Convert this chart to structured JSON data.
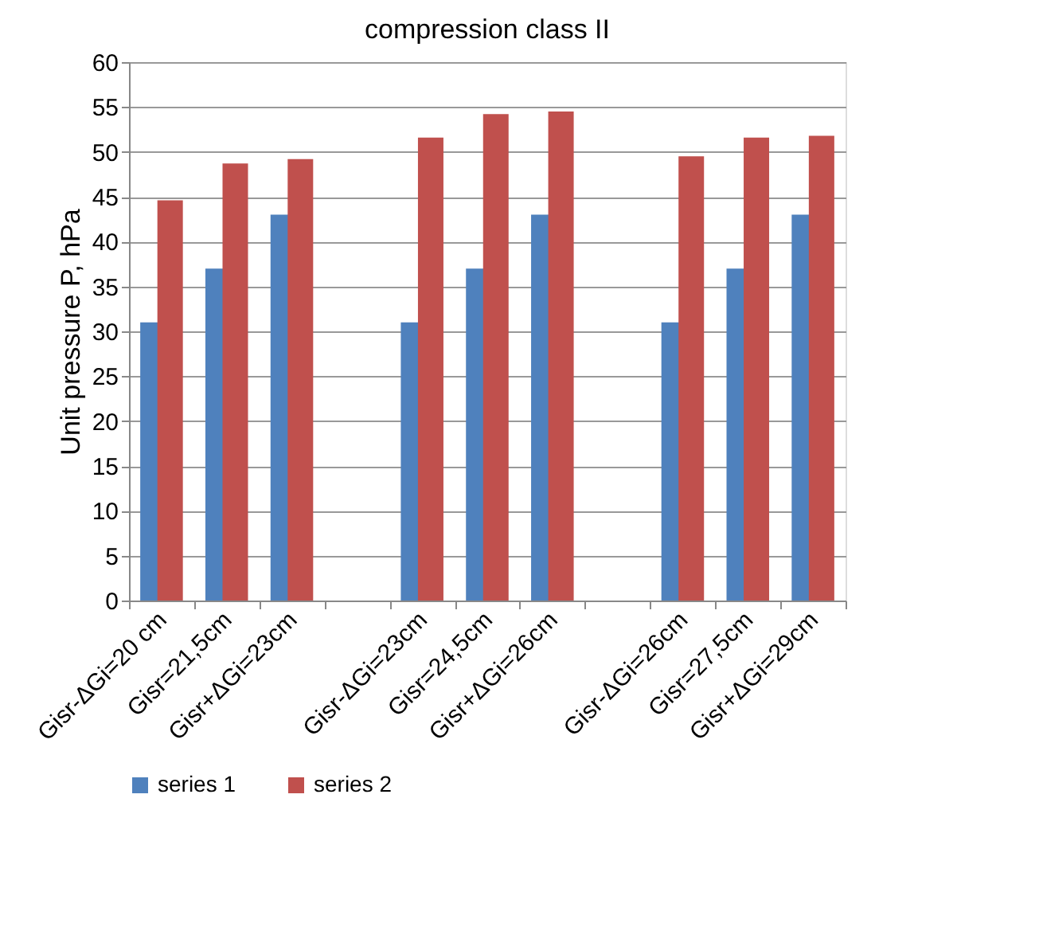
{
  "chart_data": {
    "type": "bar",
    "title": "compression class II",
    "ylabel": "Unit pressure P, hPa",
    "categories": [
      "Gisr-ΔGi=20 cm",
      "Gisr=21,5cm",
      "Gisr+ΔGi=23cm",
      null,
      "Gisr-ΔGi=23cm",
      "Gisr=24,5cm",
      "Gisr+ΔGi=26cm",
      null,
      "Gisr-ΔGi=26cm",
      "Gisr=27,5cm",
      "Gisr+ΔGi=29cm"
    ],
    "series": [
      {
        "name": "series 1",
        "color": "#4f81bd",
        "values": [
          31,
          37,
          43,
          null,
          31,
          37,
          43,
          null,
          31,
          37,
          43
        ]
      },
      {
        "name": "series 2",
        "color": "#c0504d",
        "values": [
          44.6,
          48.7,
          49.2,
          null,
          51.6,
          54.2,
          54.5,
          null,
          49.5,
          51.6,
          51.8
        ]
      }
    ],
    "ylim": [
      0,
      60
    ],
    "yticks": [
      0,
      5,
      10,
      15,
      20,
      25,
      30,
      35,
      40,
      45,
      50,
      55,
      60
    ],
    "grid": "y",
    "legend": "bottom"
  }
}
